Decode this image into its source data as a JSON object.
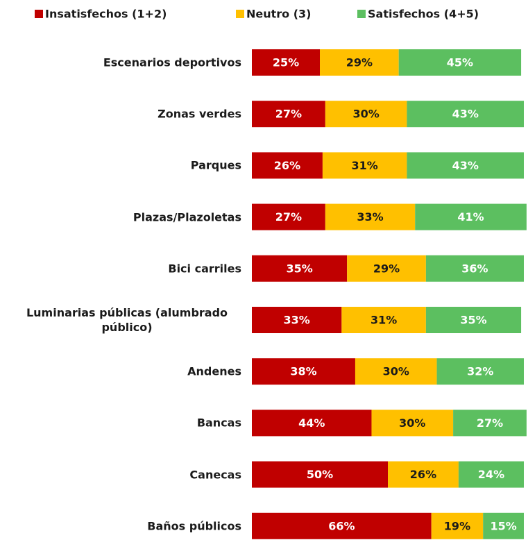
{
  "chart_data": {
    "type": "stacked-barh",
    "categories": [
      "Escenarios deportivos",
      "Zonas verdes",
      "Parques",
      "Plazas/Plazoletas",
      "Bici carriles",
      "Luminarias públicas (alumbrado público)",
      "Andenes",
      "Bancas",
      "Canecas",
      "Baños públicos"
    ],
    "series": [
      {
        "name": "Insatisfechos (1+2)",
        "color": "#c00000",
        "label_color": "#ffffff",
        "values": [
          25,
          27,
          26,
          27,
          35,
          33,
          38,
          44,
          50,
          66
        ],
        "value_labels": [
          "25%",
          "27%",
          "26%",
          "27%",
          "35%",
          "33%",
          "38%",
          "44%",
          "50%",
          "66%"
        ]
      },
      {
        "name": "Neutro (3)",
        "color": "#ffc000",
        "label_color": "#1a1a1a",
        "values": [
          29,
          30,
          31,
          33,
          29,
          31,
          30,
          30,
          26,
          19
        ],
        "value_labels": [
          "29%",
          "30%",
          "31%",
          "33%",
          "29%",
          "31%",
          "30%",
          "30%",
          "26%",
          "19%"
        ]
      },
      {
        "name": "Satisfechos (4+5)",
        "color": "#5cbf60",
        "label_color": "#ffffff",
        "values": [
          45,
          43,
          43,
          41,
          36,
          35,
          32,
          27,
          24,
          15
        ],
        "value_labels": [
          "45%",
          "43%",
          "43%",
          "41%",
          "36%",
          "35%",
          "32%",
          "27%",
          "24%",
          "15%"
        ]
      }
    ],
    "xlim": [
      0,
      100
    ],
    "legend": "top"
  }
}
